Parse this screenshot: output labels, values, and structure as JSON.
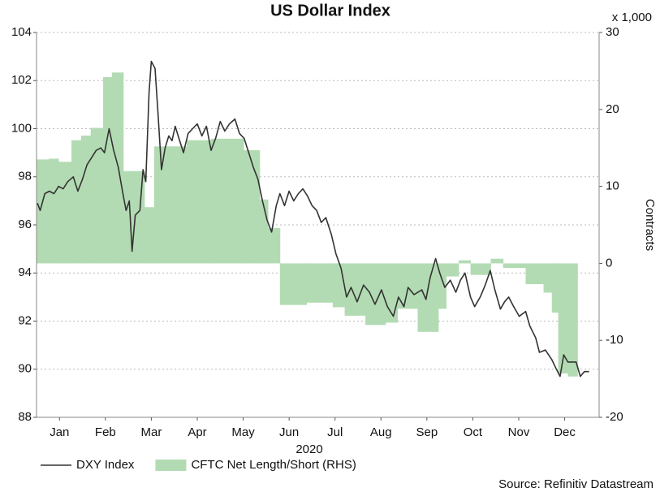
{
  "chart_data": {
    "type": "line",
    "title": "US Dollar Index",
    "xlabel": "2020",
    "y2label": "Contracts",
    "y2unit": "x 1,000",
    "source": "Source: Refinitiv Datastream",
    "xlim": [
      0,
      12.25
    ],
    "xticks": [
      {
        "value": 0.5,
        "label": "Jan"
      },
      {
        "value": 1.5,
        "label": "Feb"
      },
      {
        "value": 2.5,
        "label": "Mar"
      },
      {
        "value": 3.5,
        "label": "Apr"
      },
      {
        "value": 4.5,
        "label": "May"
      },
      {
        "value": 5.5,
        "label": "Jun"
      },
      {
        "value": 6.5,
        "label": "Jul"
      },
      {
        "value": 7.5,
        "label": "Aug"
      },
      {
        "value": 8.5,
        "label": "Sep"
      },
      {
        "value": 9.5,
        "label": "Oct"
      },
      {
        "value": 10.5,
        "label": "Nov"
      },
      {
        "value": 11.5,
        "label": "Dec"
      }
    ],
    "ylim": [
      88,
      104
    ],
    "yticks": [
      88,
      90,
      92,
      94,
      96,
      98,
      100,
      102,
      104
    ],
    "y2lim": [
      -20,
      30
    ],
    "y2ticks": [
      -20,
      -10,
      0,
      10,
      20,
      30
    ],
    "grid": true,
    "legend": "bottom",
    "series": [
      {
        "name": "DXY Index",
        "color": "#333333",
        "type": "line",
        "x": [
          0.02,
          0.08,
          0.18,
          0.28,
          0.38,
          0.48,
          0.58,
          0.68,
          0.8,
          0.9,
          1.0,
          1.1,
          1.2,
          1.3,
          1.4,
          1.48,
          1.58,
          1.68,
          1.78,
          1.88,
          1.95,
          2.02,
          2.08,
          2.15,
          2.25,
          2.32,
          2.38,
          2.45,
          2.5,
          2.58,
          2.65,
          2.72,
          2.8,
          2.88,
          2.95,
          3.02,
          3.1,
          3.2,
          3.3,
          3.4,
          3.5,
          3.6,
          3.7,
          3.8,
          3.9,
          4.0,
          4.1,
          4.2,
          4.32,
          4.42,
          4.52,
          4.62,
          4.72,
          4.82,
          4.92,
          5.02,
          5.12,
          5.22,
          5.3,
          5.4,
          5.5,
          5.6,
          5.7,
          5.8,
          5.9,
          6.0,
          6.1,
          6.2,
          6.3,
          6.42,
          6.52,
          6.63,
          6.75,
          6.85,
          6.98,
          7.12,
          7.25,
          7.37,
          7.51,
          7.64,
          7.77,
          7.88,
          8.0,
          8.09,
          8.22,
          8.39,
          8.48,
          8.57,
          8.69,
          8.78,
          8.89,
          9.01,
          9.13,
          9.23,
          9.33,
          9.45,
          9.54,
          9.66,
          9.77,
          9.88,
          9.98,
          10.1,
          10.19,
          10.28,
          10.39,
          10.51,
          10.65,
          10.74,
          10.87,
          10.95,
          11.08,
          11.22,
          11.32,
          11.4,
          11.48,
          11.57,
          11.75,
          11.84,
          11.93,
          12.03
        ],
        "values": [
          96.9,
          96.6,
          97.3,
          97.4,
          97.3,
          97.6,
          97.5,
          97.8,
          98.0,
          97.4,
          97.9,
          98.5,
          98.8,
          99.1,
          99.2,
          99.0,
          100.0,
          99.1,
          98.4,
          97.3,
          96.6,
          97.0,
          94.9,
          96.4,
          96.6,
          98.3,
          97.8,
          101.5,
          102.8,
          102.5,
          100.5,
          98.3,
          99.2,
          99.7,
          99.5,
          100.1,
          99.6,
          99.0,
          99.8,
          100.0,
          100.2,
          99.7,
          100.1,
          99.1,
          99.6,
          100.3,
          99.9,
          100.2,
          100.4,
          99.8,
          99.6,
          99.0,
          98.4,
          97.9,
          97.0,
          96.2,
          95.7,
          96.8,
          97.3,
          96.8,
          97.4,
          97.0,
          97.3,
          97.5,
          97.2,
          96.8,
          96.6,
          96.1,
          96.3,
          95.6,
          94.8,
          94.2,
          93.0,
          93.4,
          92.8,
          93.5,
          93.2,
          92.7,
          93.3,
          92.6,
          92.2,
          93.0,
          92.6,
          93.4,
          93.1,
          93.3,
          92.9,
          93.8,
          94.6,
          94.0,
          93.4,
          93.7,
          93.2,
          93.7,
          94.0,
          93.0,
          92.6,
          93.0,
          93.5,
          94.1,
          93.3,
          92.5,
          92.8,
          93.0,
          92.6,
          92.2,
          92.4,
          91.8,
          91.3,
          90.7,
          90.8,
          90.4,
          90.0,
          89.7,
          90.6,
          90.3,
          90.3,
          89.7,
          89.9,
          89.9
        ]
      },
      {
        "name": "CFTC Net Length/Short (RHS)",
        "color": "#b3dbb3",
        "type": "step-area",
        "axis": "y2",
        "x": [
          0,
          0.27,
          0.48,
          0.76,
          0.97,
          1.18,
          1.45,
          1.64,
          1.89,
          2.12,
          2.35,
          2.56,
          3.27,
          3.8,
          4.51,
          4.86,
          5.04,
          5.3,
          5.88,
          6.45,
          6.71,
          7.16,
          7.6,
          7.86,
          8.3,
          8.75,
          8.92,
          9.19,
          9.45,
          9.89,
          10.16,
          10.65,
          11.04,
          11.22,
          11.36,
          11.57
        ],
        "values": [
          13.5,
          13.6,
          13.2,
          16.0,
          16.6,
          17.6,
          24.2,
          24.8,
          12.0,
          12.0,
          7.3,
          15.2,
          16.0,
          16.2,
          14.7,
          8.3,
          4.6,
          -5.4,
          -5.1,
          -5.7,
          -6.8,
          -8.0,
          -7.7,
          -5.9,
          -8.9,
          -5.9,
          -1.7,
          0.4,
          -1.5,
          0.6,
          -0.6,
          -2.7,
          -3.8,
          -6.4,
          -14.3,
          -14.7
        ]
      }
    ]
  }
}
